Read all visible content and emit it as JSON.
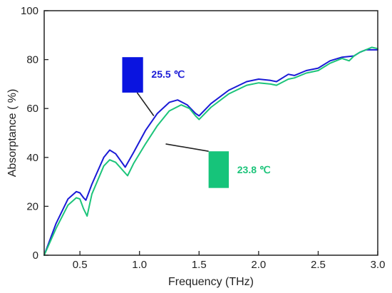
{
  "chart_data": {
    "type": "line",
    "title": "",
    "xlabel": "Frequency (THz)",
    "ylabel": "Absorptance ( %)",
    "xlim": [
      0.2,
      3.0
    ],
    "ylim": [
      0,
      100
    ],
    "xticks": [
      0.5,
      1.0,
      1.5,
      2.0,
      2.5,
      3.0
    ],
    "xtick_labels": [
      "0.5",
      "1.0",
      "1.5",
      "2.0",
      "2.5",
      "3.0"
    ],
    "yticks": [
      0,
      20,
      40,
      60,
      80,
      100
    ],
    "ytick_labels": [
      "0",
      "20",
      "40",
      "60",
      "80",
      "100"
    ],
    "grid": false,
    "series": [
      {
        "name": "25.5 ℃",
        "color": "#1a1ad6",
        "x": [
          0.2,
          0.3,
          0.4,
          0.47,
          0.5,
          0.53,
          0.55,
          0.6,
          0.7,
          0.75,
          0.8,
          0.88,
          0.95,
          1.05,
          1.15,
          1.25,
          1.32,
          1.4,
          1.47,
          1.5,
          1.6,
          1.75,
          1.9,
          2.0,
          2.1,
          2.15,
          2.25,
          2.3,
          2.4,
          2.5,
          2.6,
          2.7,
          2.8,
          2.85,
          2.9,
          2.95,
          3.0
        ],
        "y": [
          0,
          13,
          23,
          26,
          25.5,
          23.5,
          22.5,
          29,
          40,
          43,
          41.5,
          36,
          42,
          51,
          58,
          62.5,
          63.5,
          61.5,
          58,
          57,
          62,
          67.5,
          71,
          72,
          71.5,
          71,
          74,
          73.5,
          75.5,
          76.5,
          79.5,
          81,
          81.5,
          83,
          84,
          84,
          84
        ]
      },
      {
        "name": "23.8 ℃",
        "color": "#1cc47a",
        "x": [
          0.2,
          0.3,
          0.4,
          0.47,
          0.5,
          0.53,
          0.56,
          0.6,
          0.7,
          0.75,
          0.8,
          0.9,
          0.95,
          1.05,
          1.15,
          1.25,
          1.35,
          1.42,
          1.47,
          1.5,
          1.6,
          1.75,
          1.9,
          2.0,
          2.1,
          2.15,
          2.25,
          2.3,
          2.4,
          2.5,
          2.6,
          2.7,
          2.76,
          2.8,
          2.85,
          2.9,
          2.95,
          3.0
        ],
        "y": [
          0,
          11,
          20.5,
          23.5,
          23,
          19,
          16,
          25,
          36.5,
          39,
          38,
          32.5,
          37.5,
          45.5,
          53,
          59,
          61.5,
          60,
          57,
          55.5,
          60.5,
          66,
          69.5,
          70.5,
          70,
          69.5,
          72,
          72.5,
          74.5,
          75.5,
          78.5,
          80.5,
          79.5,
          81.5,
          83,
          84,
          85,
          84.5
        ]
      }
    ],
    "annotations": [
      {
        "text": "25.5 ℃",
        "series": 0,
        "color": "#1a1ad6",
        "box_color": "#0a14e0",
        "box_x": [
          0.855,
          1.03
        ],
        "box_y": [
          66.5,
          81
        ],
        "text_at": [
          1.1,
          74
        ],
        "line_from": [
          0.98,
          66.5
        ],
        "line_to": [
          1.12,
          57
        ]
      },
      {
        "text": "23.8 ℃",
        "series": 1,
        "color": "#1cc47a",
        "box_color": "#16c47a",
        "box_x": [
          1.58,
          1.75
        ],
        "box_y": [
          27.5,
          42.5
        ],
        "text_at": [
          1.82,
          35
        ],
        "line_from": [
          1.58,
          42.5
        ],
        "line_to": [
          1.22,
          45.5
        ]
      }
    ]
  }
}
